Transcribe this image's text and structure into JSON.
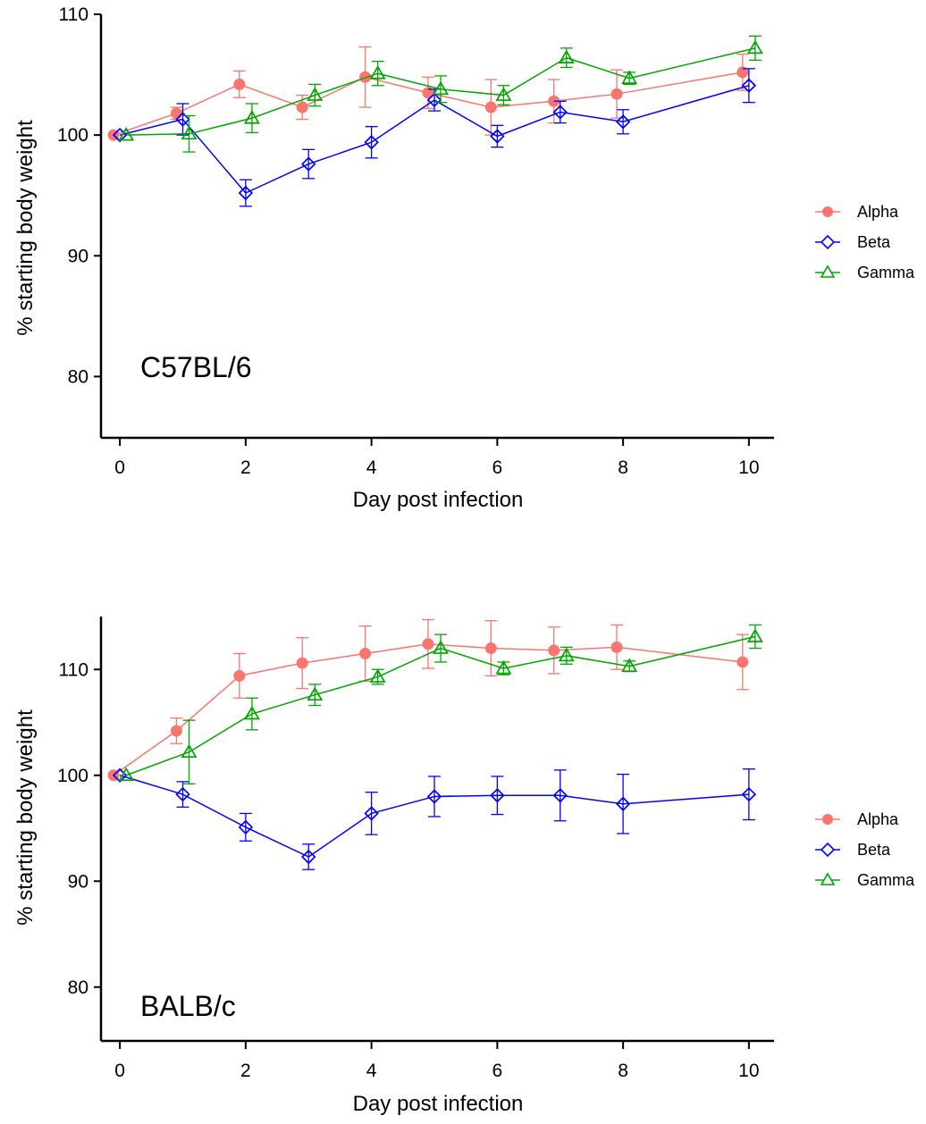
{
  "chart_data": [
    {
      "type": "line",
      "annotation": "C57BL/6",
      "xlabel": "Day post infection",
      "ylabel": "% starting body weight",
      "xlim": [
        -0.3,
        10.4
      ],
      "ylim": [
        75,
        110
      ],
      "xticks": [
        0,
        2,
        4,
        6,
        8,
        10
      ],
      "yticks": [
        80,
        90,
        100,
        110
      ],
      "legend_position": "right",
      "series": [
        {
          "name": "Alpha",
          "color": "#F8766D",
          "marker": "circle",
          "x": [
            0,
            1,
            2,
            3,
            4,
            5,
            6,
            7,
            8,
            10
          ],
          "y": [
            100,
            101.8,
            104.2,
            102.3,
            104.8,
            103.5,
            102.3,
            102.8,
            103.4,
            105.2
          ],
          "err": [
            0,
            0.5,
            1.1,
            1.0,
            2.5,
            1.3,
            2.3,
            1.8,
            2.0,
            1.5
          ]
        },
        {
          "name": "Beta",
          "color": "#0000FF",
          "marker": "diamond",
          "x": [
            0,
            1,
            2,
            3,
            4,
            5,
            6,
            7,
            8,
            10
          ],
          "y": [
            100,
            101.3,
            95.2,
            97.6,
            99.4,
            102.9,
            99.9,
            101.9,
            101.1,
            104.1
          ],
          "err": [
            0,
            1.3,
            1.1,
            1.2,
            1.3,
            0.9,
            0.9,
            0.9,
            1.0,
            1.4
          ]
        },
        {
          "name": "Gamma",
          "color": "#00A600",
          "marker": "triangle",
          "x": [
            0,
            1,
            2,
            3,
            4,
            5,
            6,
            7,
            8,
            10
          ],
          "y": [
            100,
            100.1,
            101.4,
            103.3,
            105.1,
            103.8,
            103.3,
            106.4,
            104.7,
            107.2
          ],
          "err": [
            0,
            1.5,
            1.2,
            0.9,
            1.0,
            1.1,
            0.8,
            0.8,
            0.5,
            1.0
          ]
        }
      ]
    },
    {
      "type": "line",
      "annotation": "BALB/c",
      "xlabel": "Day post infection",
      "ylabel": "% starting body weight",
      "xlim": [
        -0.3,
        10.4
      ],
      "ylim": [
        75,
        115
      ],
      "xticks": [
        0,
        2,
        4,
        6,
        8,
        10
      ],
      "yticks": [
        80,
        90,
        100,
        110
      ],
      "legend_position": "right",
      "series": [
        {
          "name": "Alpha",
          "color": "#F8766D",
          "marker": "circle",
          "x": [
            0,
            1,
            2,
            3,
            4,
            5,
            6,
            7,
            8,
            10
          ],
          "y": [
            100,
            104.2,
            109.4,
            110.6,
            111.5,
            112.4,
            112.0,
            111.8,
            112.1,
            110.7
          ],
          "err": [
            0,
            1.2,
            2.1,
            2.4,
            2.6,
            2.3,
            2.6,
            2.2,
            2.1,
            2.6
          ]
        },
        {
          "name": "Beta",
          "color": "#0000FF",
          "marker": "diamond",
          "x": [
            0,
            1,
            2,
            3,
            4,
            5,
            6,
            7,
            8,
            10
          ],
          "y": [
            100,
            98.2,
            95.1,
            92.3,
            96.4,
            98.0,
            98.1,
            98.1,
            97.3,
            98.2
          ],
          "err": [
            0,
            1.2,
            1.3,
            1.2,
            2.0,
            1.9,
            1.8,
            2.4,
            2.8,
            2.4
          ]
        },
        {
          "name": "Gamma",
          "color": "#00A600",
          "marker": "triangle",
          "x": [
            0,
            1,
            2,
            3,
            4,
            5,
            6,
            7,
            8,
            10
          ],
          "y": [
            100,
            102.2,
            105.8,
            107.6,
            109.3,
            112.0,
            110.1,
            111.3,
            110.3,
            113.1
          ],
          "err": [
            0,
            3.0,
            1.5,
            1.0,
            0.7,
            1.3,
            0.6,
            0.8,
            0.5,
            1.1
          ]
        }
      ]
    }
  ]
}
